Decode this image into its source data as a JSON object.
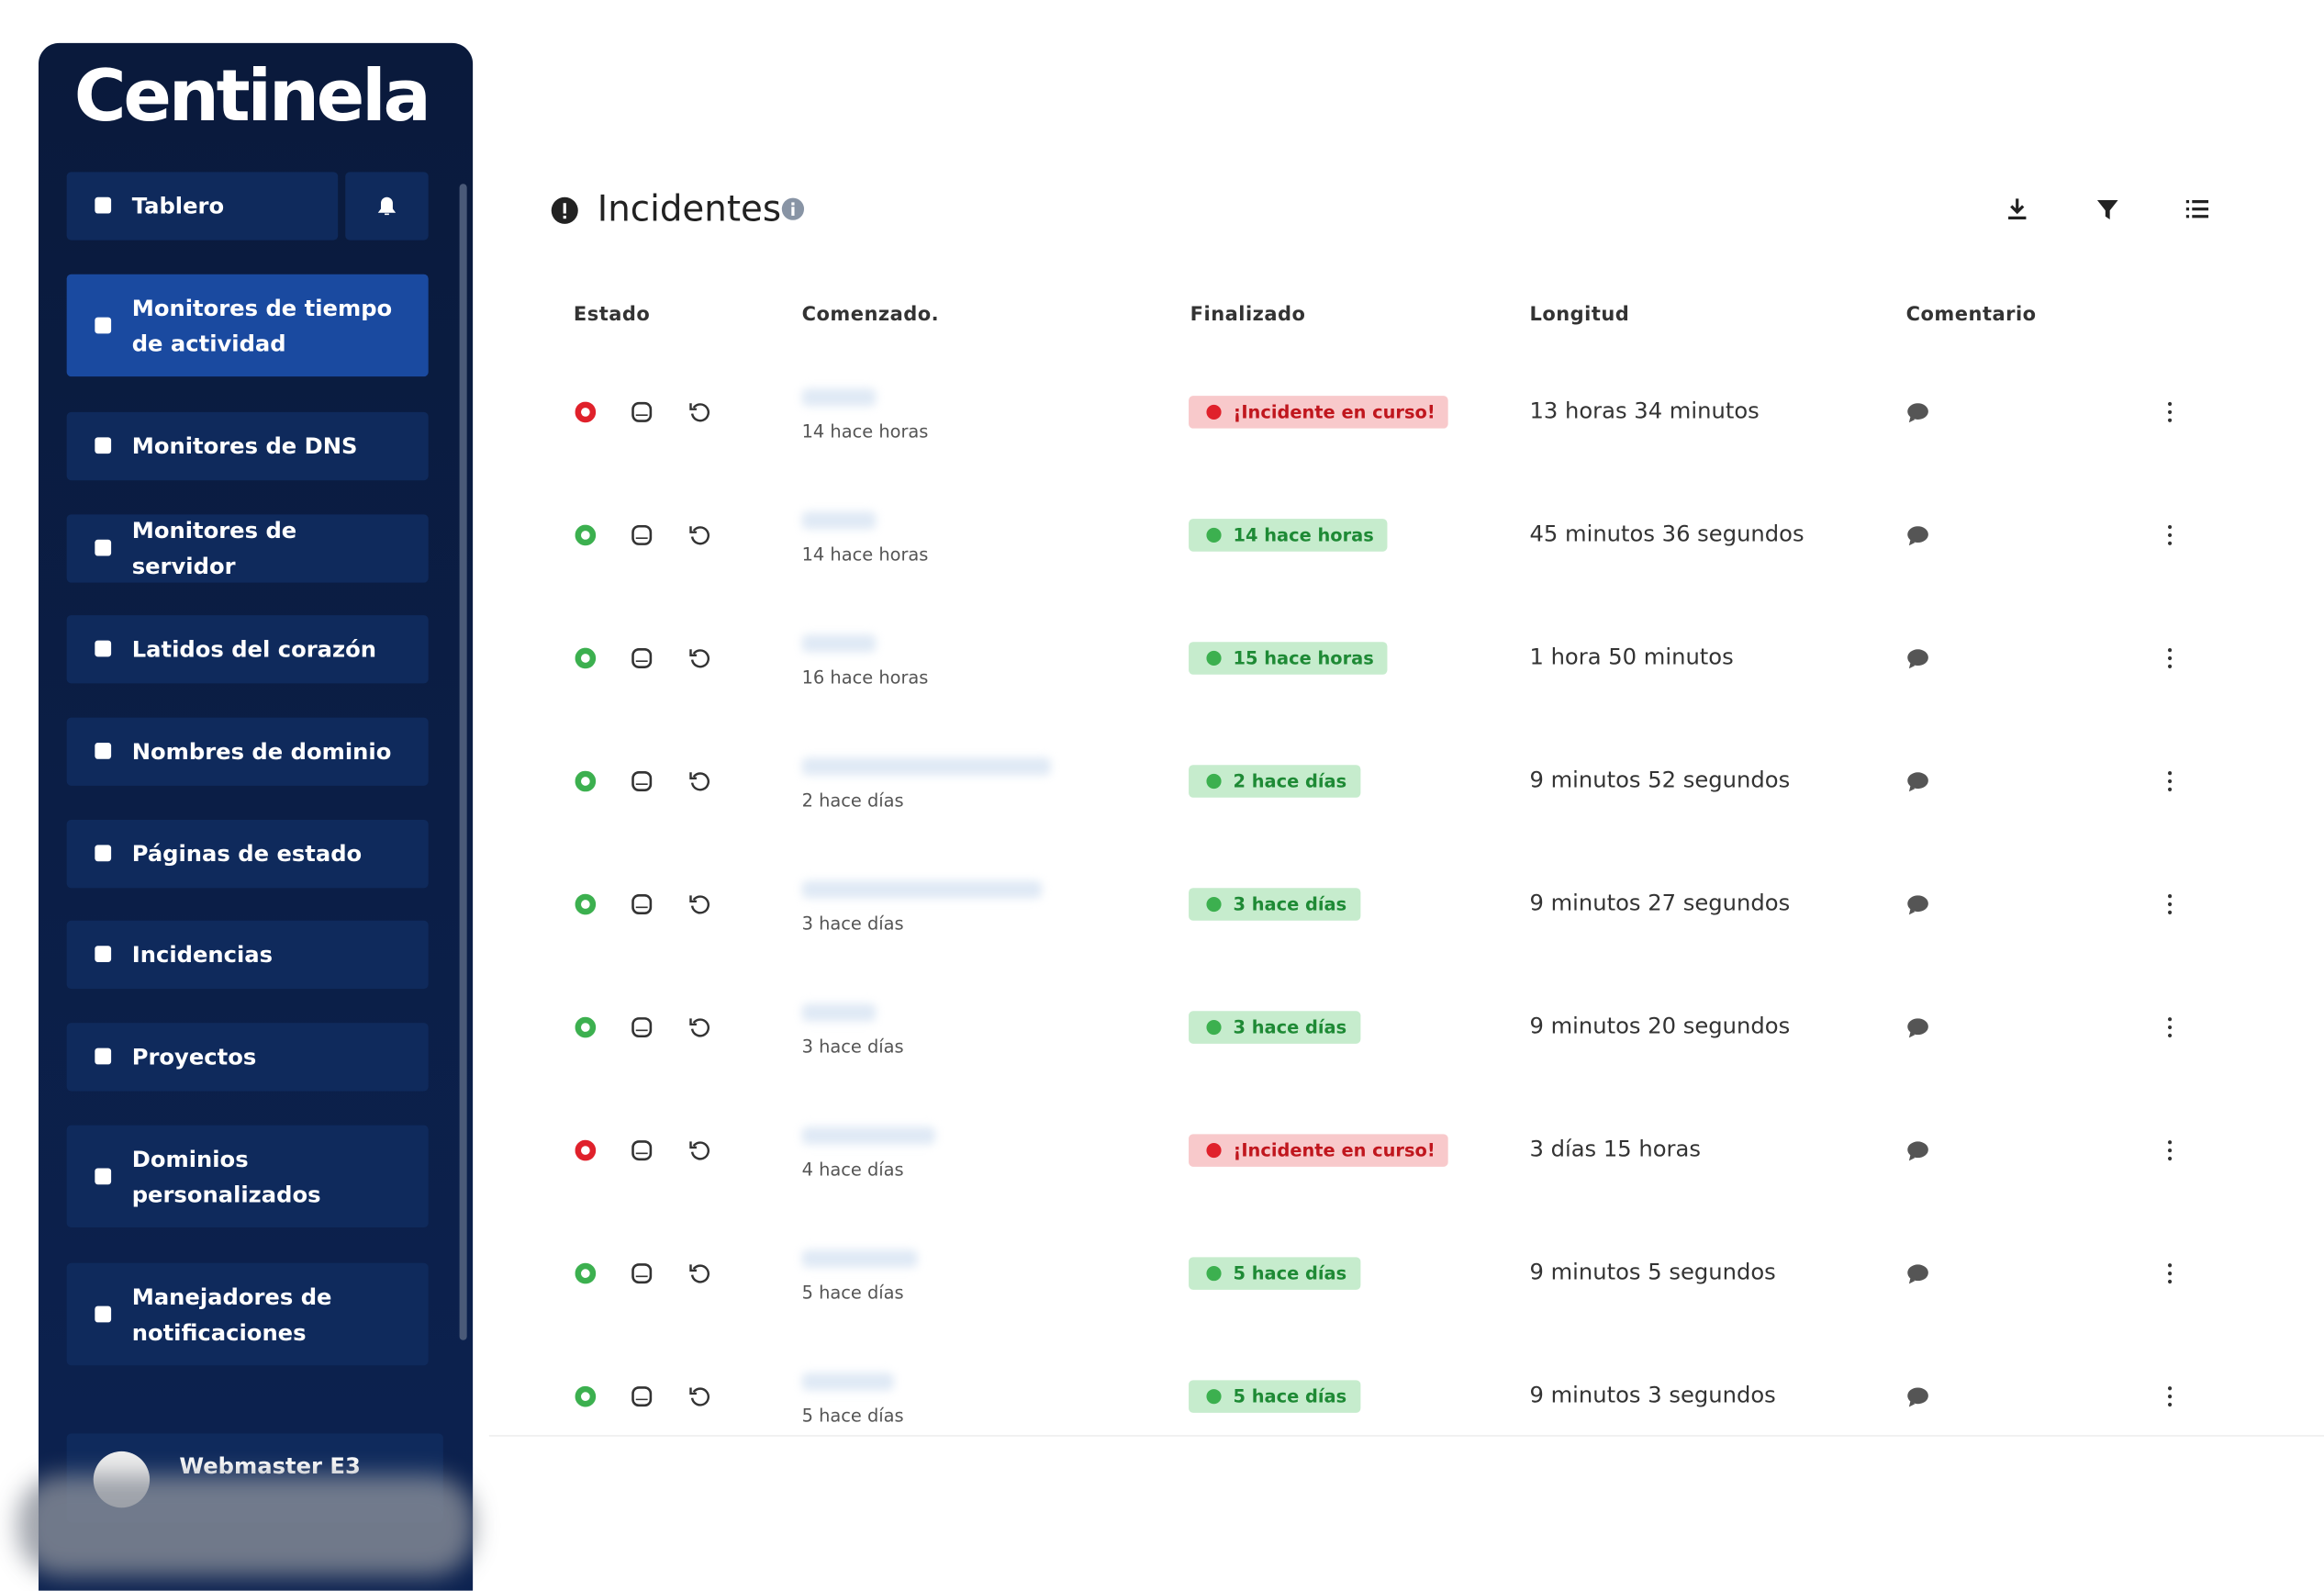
{
  "logo": "Centinela",
  "sidebar": {
    "dashboard": "Tablero",
    "items": [
      {
        "label": "Monitores de tiempo de actividad",
        "active": true
      },
      {
        "label": "Monitores de DNS"
      },
      {
        "label": "Monitores de servidor"
      },
      {
        "label": "Latidos del corazón"
      },
      {
        "label": "Nombres de dominio"
      },
      {
        "label": "Páginas de estado"
      },
      {
        "label": "Incidencias"
      },
      {
        "label": "Proyectos"
      },
      {
        "label": "Dominios personalizados"
      },
      {
        "label": "Manejadores de notificaciones"
      }
    ],
    "user": "Webmaster E3"
  },
  "header": {
    "title": "Incidentes"
  },
  "table": {
    "columns": [
      "Estado",
      "Comenzado.",
      "Finalizado",
      "Longitud",
      "Comentario"
    ],
    "rows": [
      {
        "color": "red",
        "started": "14 hace horas",
        "ended": "¡Incidente en curso!",
        "length": "13 horas 34 minutos"
      },
      {
        "color": "green",
        "started": "14 hace horas",
        "ended": "14 hace horas",
        "length": "45 minutos 36 segundos"
      },
      {
        "color": "green",
        "started": "16 hace horas",
        "ended": "15 hace horas",
        "length": "1 hora 50 minutos"
      },
      {
        "color": "green",
        "started": "2 hace días",
        "ended": "2 hace días",
        "length": "9 minutos 52 segundos"
      },
      {
        "color": "green",
        "started": "3 hace días",
        "ended": "3 hace días",
        "length": "9 minutos 27 segundos"
      },
      {
        "color": "green",
        "started": "3 hace días",
        "ended": "3 hace días",
        "length": "9 minutos 20 segundos"
      },
      {
        "color": "red",
        "started": "4 hace días",
        "ended": "¡Incidente en curso!",
        "length": "3 días 15 horas"
      },
      {
        "color": "green",
        "started": "5 hace días",
        "ended": "5 hace días",
        "length": "9 minutos 5 segundos"
      },
      {
        "color": "green",
        "started": "5 hace días",
        "ended": "5 hace días",
        "length": "9 minutos 3 segundos"
      }
    ]
  }
}
